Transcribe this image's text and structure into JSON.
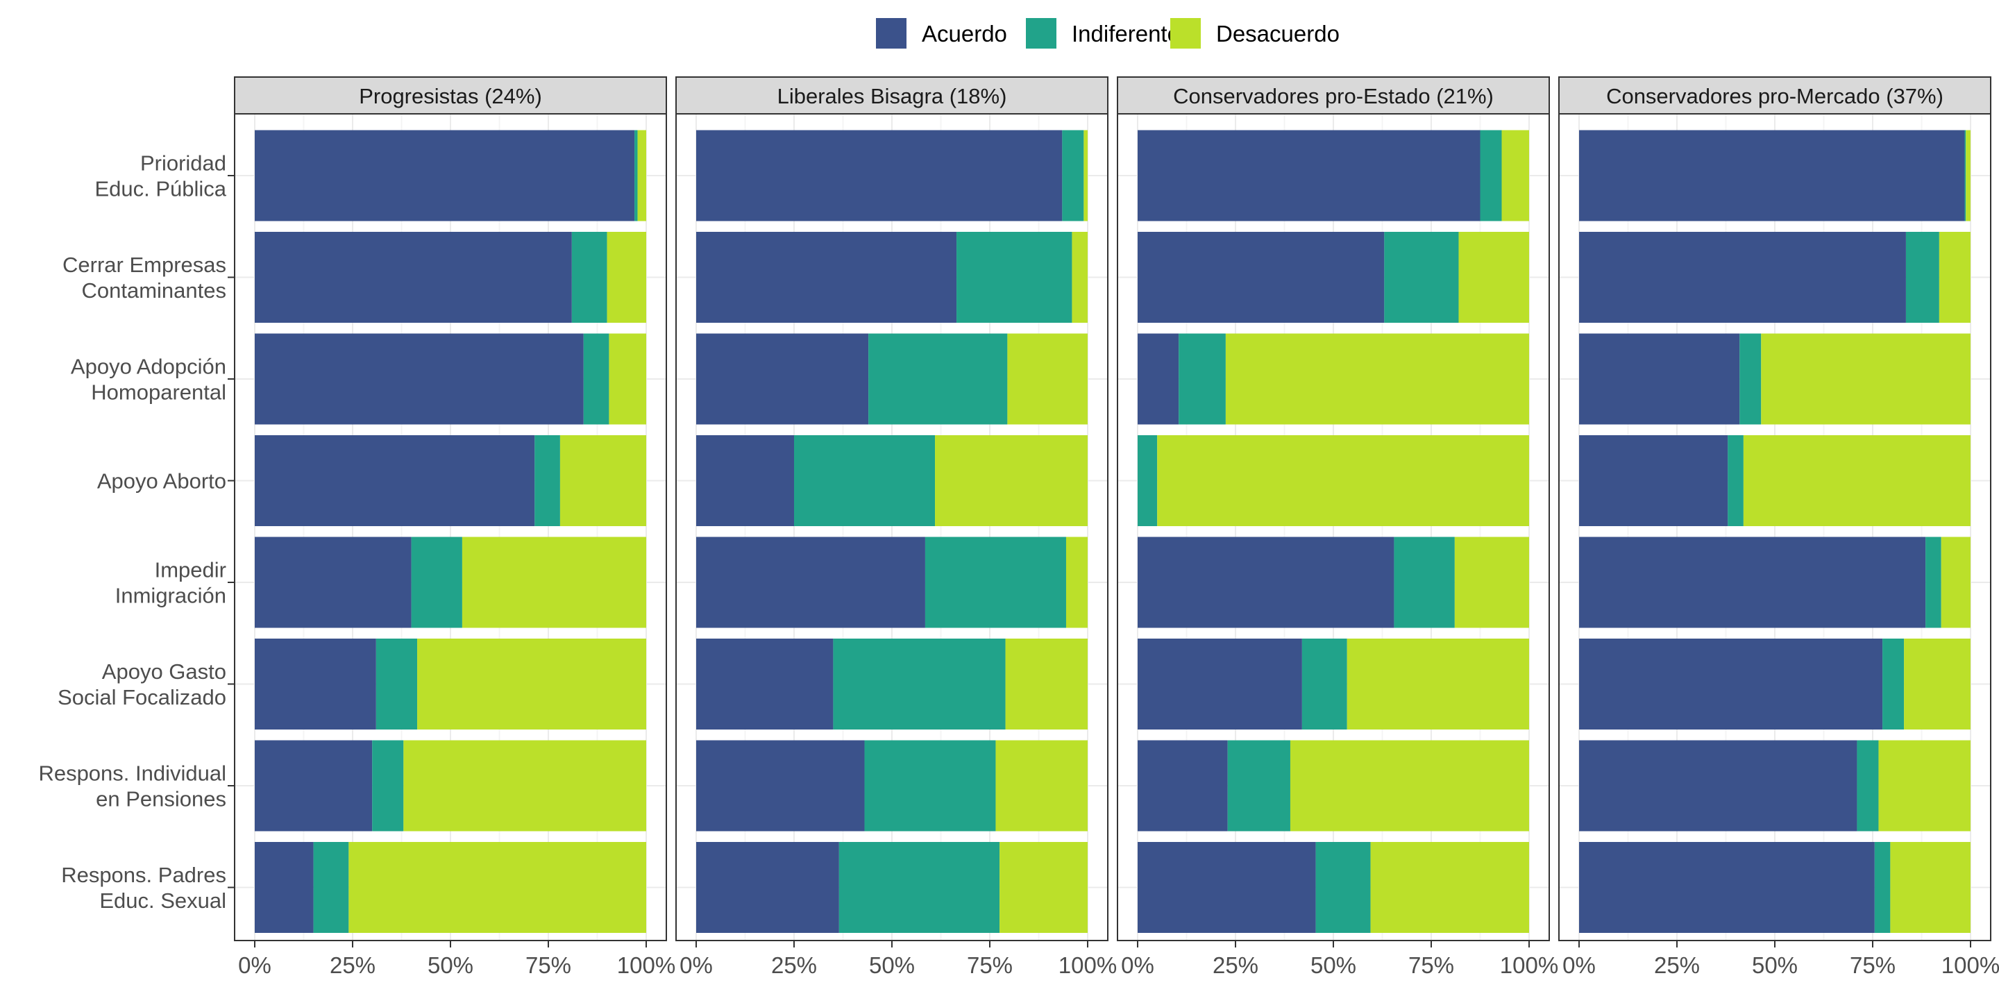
{
  "chart_data": {
    "type": "bar",
    "orientation": "horizontal",
    "stacked": true,
    "legend": {
      "position": "top",
      "items": [
        {
          "label": "Acuerdo",
          "color": "#3B528B"
        },
        {
          "label": "Indiferente",
          "color": "#21A38A"
        },
        {
          "label": "Desacuerdo",
          "color": "#BBE02A"
        }
      ]
    },
    "categories": [
      [
        "Prioridad",
        "Educ. Pública"
      ],
      [
        "Cerrar Empresas",
        "Contaminantes"
      ],
      [
        "Apoyo Adopción",
        "Homoparental"
      ],
      [
        "Apoyo Aborto"
      ],
      [
        "Impedir",
        "Inmigración"
      ],
      [
        "Apoyo Gasto",
        "Social Focalizado"
      ],
      [
        "Respons. Individual",
        "en Pensiones"
      ],
      [
        "Respons. Padres",
        "Educ. Sexual"
      ]
    ],
    "xlim": [
      0,
      1
    ],
    "x_ticks": [
      "0%",
      "25%",
      "50%",
      "75%",
      "100%"
    ],
    "grid": true,
    "panels": [
      {
        "title": "Progresistas (24%)",
        "acuerdo": [
          0.97,
          0.81,
          0.84,
          0.715,
          0.4,
          0.31,
          0.3,
          0.15
        ],
        "indiferente": [
          0.008,
          0.09,
          0.065,
          0.065,
          0.13,
          0.105,
          0.08,
          0.09
        ],
        "desacuerdo": [
          0.022,
          0.1,
          0.095,
          0.22,
          0.47,
          0.585,
          0.62,
          0.76
        ]
      },
      {
        "title": "Liberales Bisagra (18%)",
        "acuerdo": [
          0.935,
          0.665,
          0.44,
          0.25,
          0.585,
          0.35,
          0.43,
          0.365
        ],
        "indiferente": [
          0.055,
          0.295,
          0.355,
          0.36,
          0.36,
          0.44,
          0.335,
          0.41
        ],
        "desacuerdo": [
          0.01,
          0.04,
          0.205,
          0.39,
          0.055,
          0.21,
          0.235,
          0.225
        ]
      },
      {
        "title": "Conservadores pro-Estado (21%)",
        "acuerdo": [
          0.875,
          0.63,
          0.105,
          0.0,
          0.655,
          0.42,
          0.23,
          0.455
        ],
        "indiferente": [
          0.055,
          0.19,
          0.12,
          0.05,
          0.155,
          0.115,
          0.16,
          0.14
        ],
        "desacuerdo": [
          0.07,
          0.18,
          0.775,
          0.95,
          0.19,
          0.465,
          0.61,
          0.405
        ]
      },
      {
        "title": "Conservadores pro-Mercado (37%)",
        "acuerdo": [
          0.985,
          0.835,
          0.41,
          0.38,
          0.885,
          0.775,
          0.71,
          0.755
        ],
        "indiferente": [
          0.003,
          0.085,
          0.055,
          0.04,
          0.04,
          0.055,
          0.055,
          0.04
        ],
        "desacuerdo": [
          0.012,
          0.08,
          0.535,
          0.58,
          0.075,
          0.17,
          0.235,
          0.205
        ]
      }
    ]
  }
}
